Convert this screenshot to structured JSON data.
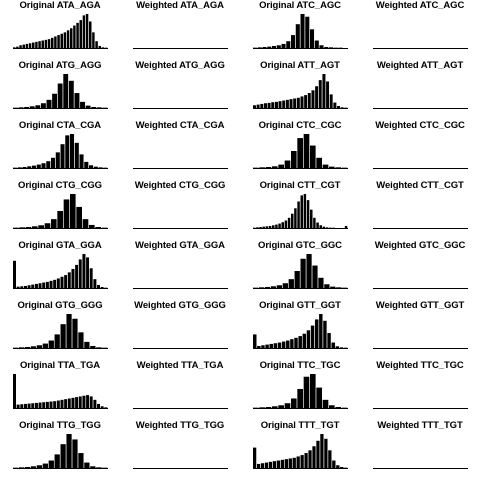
{
  "chart_data": {
    "type": "histogram-grid",
    "layout": {
      "rows": 8,
      "cols": 4
    },
    "panels": [
      {
        "title": "Original ATA_AGA",
        "values": [
          0.02,
          0.04,
          0.08,
          0.1,
          0.12,
          0.14,
          0.16,
          0.18,
          0.2,
          0.22,
          0.24,
          0.26,
          0.3,
          0.34,
          0.38,
          0.42,
          0.46,
          0.52,
          0.58,
          0.66,
          0.74,
          0.82,
          0.96,
          1.0,
          0.78,
          0.46,
          0.2,
          0.06,
          0.02,
          0.01
        ]
      },
      {
        "title": "Weighted ATA_AGA",
        "values": []
      },
      {
        "title": "Original ATC_AGC",
        "values": [
          0.01,
          0.02,
          0.03,
          0.04,
          0.06,
          0.08,
          0.12,
          0.2,
          0.38,
          0.7,
          1.0,
          0.92,
          0.55,
          0.22,
          0.08,
          0.03,
          0.02,
          0.01,
          0.01,
          0.005
        ]
      },
      {
        "title": "Weighted ATC_AGC",
        "values": []
      },
      {
        "title": "Original ATG_AGG",
        "values": [
          0.01,
          0.02,
          0.03,
          0.05,
          0.08,
          0.14,
          0.24,
          0.42,
          0.72,
          1.0,
          0.8,
          0.44,
          0.18,
          0.07,
          0.03,
          0.02,
          0.01
        ]
      },
      {
        "title": "Weighted ATG_AGG",
        "values": []
      },
      {
        "title": "Original ATT_AGT",
        "values": [
          0.08,
          0.1,
          0.12,
          0.14,
          0.15,
          0.17,
          0.18,
          0.2,
          0.22,
          0.24,
          0.26,
          0.28,
          0.3,
          0.34,
          0.38,
          0.44,
          0.52,
          0.64,
          0.82,
          1.0,
          0.78,
          0.4,
          0.16,
          0.06,
          0.02,
          0.01
        ]
      },
      {
        "title": "Weighted ATT_AGT",
        "values": []
      },
      {
        "title": "Original CTA_CGA",
        "values": [
          0.01,
          0.02,
          0.03,
          0.05,
          0.07,
          0.1,
          0.14,
          0.2,
          0.3,
          0.46,
          0.7,
          0.96,
          1.0,
          0.74,
          0.4,
          0.18,
          0.08,
          0.04,
          0.02,
          0.01
        ]
      },
      {
        "title": "Weighted CTA_CGA",
        "values": []
      },
      {
        "title": "Original CTC_CGC",
        "values": [
          0.01,
          0.02,
          0.03,
          0.05,
          0.1,
          0.22,
          0.5,
          0.88,
          1.0,
          0.66,
          0.3,
          0.1,
          0.04,
          0.02,
          0.01
        ]
      },
      {
        "title": "Weighted CTC_CGC",
        "values": []
      },
      {
        "title": "Original CTG_CGG",
        "values": [
          0.01,
          0.02,
          0.03,
          0.05,
          0.08,
          0.14,
          0.26,
          0.5,
          0.84,
          1.0,
          0.62,
          0.26,
          0.09,
          0.03,
          0.01
        ]
      },
      {
        "title": "Weighted CTG_CGG",
        "values": []
      },
      {
        "title": "Original CTT_CGT",
        "values": [
          0.01,
          0.02,
          0.03,
          0.04,
          0.05,
          0.06,
          0.08,
          0.1,
          0.13,
          0.17,
          0.22,
          0.3,
          0.42,
          0.58,
          0.78,
          0.96,
          1.0,
          0.82,
          0.54,
          0.3,
          0.16,
          0.08,
          0.04,
          0.02,
          0.01,
          0.01,
          0.005,
          0.005,
          0.005,
          0.06
        ]
      },
      {
        "title": "Weighted CTT_CGT",
        "values": []
      },
      {
        "title": "Original GTA_GGA",
        "values": [
          0.8,
          0.04,
          0.05,
          0.06,
          0.08,
          0.1,
          0.12,
          0.14,
          0.16,
          0.18,
          0.21,
          0.24,
          0.28,
          0.33,
          0.38,
          0.46,
          0.56,
          0.68,
          0.84,
          1.0,
          0.9,
          0.58,
          0.26,
          0.09,
          0.03,
          0.01
        ]
      },
      {
        "title": "Weighted GTA_GGA",
        "values": []
      },
      {
        "title": "Original GTC_GGC",
        "values": [
          0.01,
          0.02,
          0.03,
          0.05,
          0.08,
          0.14,
          0.26,
          0.5,
          0.86,
          1.0,
          0.66,
          0.3,
          0.11,
          0.04,
          0.02,
          0.01
        ]
      },
      {
        "title": "Weighted GTC_GGC",
        "values": []
      },
      {
        "title": "Original GTG_GGG",
        "values": [
          0.01,
          0.02,
          0.03,
          0.05,
          0.08,
          0.13,
          0.22,
          0.4,
          0.7,
          1.0,
          0.86,
          0.46,
          0.18,
          0.06,
          0.02,
          0.01
        ]
      },
      {
        "title": "Weighted GTG_GGG",
        "values": []
      },
      {
        "title": "Original GTT_GGT",
        "values": [
          0.4,
          0.06,
          0.08,
          0.1,
          0.12,
          0.14,
          0.16,
          0.19,
          0.22,
          0.26,
          0.3,
          0.35,
          0.42,
          0.52,
          0.66,
          0.84,
          1.0,
          0.8,
          0.44,
          0.16,
          0.05,
          0.02,
          0.01
        ]
      },
      {
        "title": "Weighted GTT_GGT",
        "values": []
      },
      {
        "title": "Original TTA_TGA",
        "values": [
          1.0,
          0.1,
          0.11,
          0.12,
          0.13,
          0.14,
          0.15,
          0.16,
          0.17,
          0.18,
          0.19,
          0.2,
          0.22,
          0.24,
          0.26,
          0.28,
          0.3,
          0.32,
          0.34,
          0.36,
          0.38,
          0.34,
          0.24,
          0.12,
          0.05,
          0.02
        ]
      },
      {
        "title": "Weighted TTA_TGA",
        "values": []
      },
      {
        "title": "Original TTC_TGC",
        "values": [
          0.01,
          0.02,
          0.03,
          0.05,
          0.08,
          0.14,
          0.28,
          0.56,
          0.92,
          1.0,
          0.6,
          0.24,
          0.08,
          0.03,
          0.01
        ]
      },
      {
        "title": "Weighted TTC_TGC",
        "values": []
      },
      {
        "title": "Original TTG_TGG",
        "values": [
          0.01,
          0.02,
          0.03,
          0.05,
          0.08,
          0.13,
          0.22,
          0.4,
          0.7,
          1.0,
          0.84,
          0.44,
          0.16,
          0.05,
          0.02,
          0.01
        ]
      },
      {
        "title": "Weighted TTG_TGG",
        "values": []
      },
      {
        "title": "Original TTT_TGT",
        "values": [
          0.6,
          0.12,
          0.14,
          0.16,
          0.18,
          0.2,
          0.22,
          0.24,
          0.26,
          0.28,
          0.3,
          0.34,
          0.38,
          0.44,
          0.52,
          0.64,
          0.8,
          1.0,
          0.86,
          0.52,
          0.22,
          0.08,
          0.03,
          0.01
        ]
      },
      {
        "title": "Weighted TTT_TGT",
        "values": []
      }
    ]
  }
}
